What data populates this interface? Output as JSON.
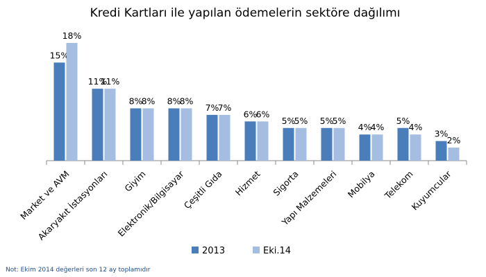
{
  "chart_data": {
    "type": "bar",
    "title": "Kredi Kartları ile yapılan ödemelerin sektöre dağılımı",
    "categories": [
      "Market ve AVM",
      "Akaryakıt İstasyonları",
      "Giyim",
      "Elektronik/Bilgisayar",
      "Çeşitli Gıda",
      "Hizmet",
      "Sigorta",
      "Yapı Malzemeleri",
      "Mobilya",
      "Telekom",
      "Kuyumcular"
    ],
    "series": [
      {
        "name": "2013",
        "color": "#4a7ebb",
        "values": [
          15,
          11,
          8,
          8,
          7,
          6,
          5,
          5,
          4,
          5,
          3
        ],
        "labels": [
          "15%",
          "11%",
          "8%",
          "8%",
          "7%",
          "6%",
          "5%",
          "5%",
          "4%",
          "5%",
          "3%"
        ]
      },
      {
        "name": "Eki.14",
        "color": "#a4bde0",
        "values": [
          18,
          11,
          8,
          8,
          7,
          6,
          5,
          5,
          4,
          4,
          2
        ],
        "labels": [
          "18%",
          "11%",
          "8%",
          "8%",
          "7%",
          "6%",
          "5%",
          "5%",
          "4%",
          "4%",
          "2%"
        ]
      }
    ],
    "ylim": [
      0,
      18
    ],
    "grid": false,
    "legend": "bottom",
    "note": "Not: Ekim 2014 değerleri son 12 ay toplamıdır"
  }
}
